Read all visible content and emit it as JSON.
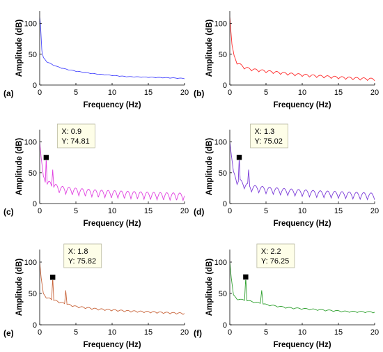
{
  "chart_data": [
    {
      "type": "line",
      "panel_label": "(a)",
      "xlabel": "Frequency (Hz)",
      "ylabel": "Amplitude (dB)",
      "xlim": [
        0,
        20
      ],
      "ylim": [
        0,
        120
      ],
      "xticks": [
        0,
        5,
        10,
        15,
        20
      ],
      "yticks": [
        0,
        50,
        100
      ],
      "color": "#4a4aff",
      "series": [
        {
          "x": [
            0,
            0.1,
            0.3,
            0.5,
            1,
            2,
            3,
            4,
            6,
            8,
            10,
            12,
            15,
            18,
            20
          ],
          "y": [
            110,
            100,
            55,
            45,
            38,
            32,
            28,
            25,
            21,
            18,
            16,
            14,
            13,
            12,
            11
          ]
        }
      ],
      "ripple": {
        "period": 1.0,
        "amplitude": 0.8
      }
    },
    {
      "type": "line",
      "panel_label": "(b)",
      "xlabel": "Frequency (Hz)",
      "ylabel": "Amplitude (dB)",
      "xlim": [
        0,
        20
      ],
      "ylim": [
        0,
        120
      ],
      "xticks": [
        0,
        5,
        10,
        15,
        20
      ],
      "yticks": [
        0,
        50,
        100
      ],
      "color": "#ff2a2a",
      "series": [
        {
          "x": [
            0,
            0.1,
            0.3,
            0.6,
            1,
            2,
            3,
            5,
            8,
            11,
            15,
            18,
            20
          ],
          "y": [
            110,
            95,
            65,
            48,
            38,
            30,
            27,
            24,
            20,
            17,
            14,
            12,
            11
          ]
        }
      ],
      "ripple": {
        "period": 1.0,
        "amplitude": 4
      }
    },
    {
      "type": "line",
      "panel_label": "(c)",
      "xlabel": "Frequency (Hz)",
      "ylabel": "Amplitude (dB)",
      "xlim": [
        0,
        20
      ],
      "ylim": [
        0,
        120
      ],
      "xticks": [
        0,
        5,
        10,
        15,
        20
      ],
      "yticks": [
        0,
        50,
        100
      ],
      "color": "#e040e0",
      "series": [
        {
          "x": [
            0,
            0.2,
            0.5,
            1,
            2,
            3,
            5,
            8,
            12,
            16,
            20
          ],
          "y": [
            100,
            75,
            45,
            38,
            32,
            28,
            25,
            22,
            20,
            18,
            17
          ]
        }
      ],
      "ripple": {
        "period": 0.9,
        "amplitude": 12
      },
      "peaks": [
        {
          "x": 0.9,
          "y": 74.81,
          "w": 0.1
        },
        {
          "x": 1.8,
          "y": 55,
          "w": 0.12
        }
      ],
      "datatip": {
        "x_text": "X: 0.9",
        "y_text": "Y: 74.81",
        "x": 0.9,
        "y": 74.81
      }
    },
    {
      "type": "line",
      "panel_label": "(d)",
      "xlabel": "Frequency (Hz)",
      "ylabel": "Amplitude (dB)",
      "xlim": [
        0,
        20
      ],
      "ylim": [
        0,
        120
      ],
      "xticks": [
        0,
        5,
        10,
        15,
        20
      ],
      "yticks": [
        0,
        50,
        100
      ],
      "color": "#7a3ad8",
      "series": [
        {
          "x": [
            0,
            0.2,
            0.5,
            1,
            2,
            3,
            5,
            8,
            12,
            16,
            20
          ],
          "y": [
            100,
            80,
            52,
            42,
            35,
            30,
            27,
            24,
            21,
            19,
            17
          ]
        }
      ],
      "ripple": {
        "period": 1.0,
        "amplitude": 11
      },
      "peaks": [
        {
          "x": 1.3,
          "y": 75.02,
          "w": 0.12
        },
        {
          "x": 2.6,
          "y": 55,
          "w": 0.14
        }
      ],
      "datatip": {
        "x_text": "X: 1.3",
        "y_text": "Y: 75.02",
        "x": 1.3,
        "y": 75.02
      }
    },
    {
      "type": "line",
      "panel_label": "(e)",
      "xlabel": "Frequency (Hz)",
      "ylabel": "Amplitude (dB)",
      "xlim": [
        0,
        20
      ],
      "ylim": [
        0,
        120
      ],
      "xticks": [
        0,
        5,
        10,
        15,
        20
      ],
      "yticks": [
        0,
        50,
        100
      ],
      "color": "#c8643a",
      "series": [
        {
          "x": [
            0,
            0.2,
            0.5,
            1,
            2,
            3,
            5,
            8,
            12,
            16,
            20
          ],
          "y": [
            100,
            75,
            50,
            44,
            40,
            36,
            30,
            26,
            23,
            21,
            19
          ]
        }
      ],
      "ripple": {
        "period": 0.9,
        "amplitude": 2.5
      },
      "peaks": [
        {
          "x": 1.8,
          "y": 75.82,
          "w": 0.14
        },
        {
          "x": 3.6,
          "y": 55,
          "w": 0.16
        }
      ],
      "datatip": {
        "x_text": "X: 1.8",
        "y_text": "Y: 75.82",
        "x": 1.8,
        "y": 75.82
      }
    },
    {
      "type": "line",
      "panel_label": "(f)",
      "xlabel": "Frequency (Hz)",
      "ylabel": "Amplitude (dB)",
      "xlim": [
        0,
        20
      ],
      "ylim": [
        0,
        120
      ],
      "xticks": [
        0,
        5,
        10,
        15,
        20
      ],
      "yticks": [
        0,
        50,
        100
      ],
      "color": "#2ea02e",
      "series": [
        {
          "x": [
            0,
            0.2,
            0.5,
            1,
            2,
            3,
            5,
            8,
            12,
            16,
            20
          ],
          "y": [
            100,
            75,
            48,
            42,
            40,
            38,
            33,
            28,
            25,
            22,
            21
          ]
        }
      ],
      "ripple": {
        "period": 1.1,
        "amplitude": 2
      },
      "peaks": [
        {
          "x": 2.2,
          "y": 76.25,
          "w": 0.16
        },
        {
          "x": 4.4,
          "y": 55,
          "w": 0.18
        }
      ],
      "datatip": {
        "x_text": "X: 2.2",
        "y_text": "Y: 76.25",
        "x": 2.2,
        "y": 76.25
      }
    }
  ]
}
